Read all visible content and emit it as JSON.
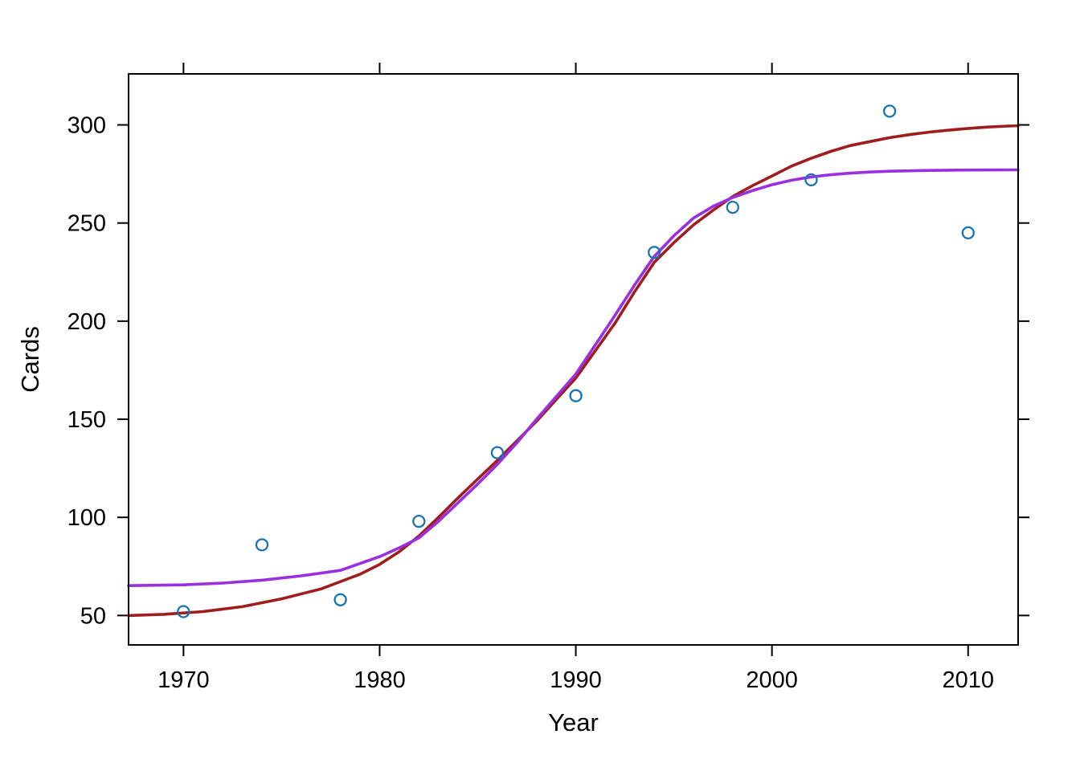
{
  "figure": {
    "background_color": "#ffffff",
    "border_color": "#000000"
  },
  "chart_data": {
    "type": "scatter",
    "title": "",
    "xlabel": "Year",
    "ylabel": "Cards",
    "xlim": [
      1967.2,
      2012.55
    ],
    "ylim": [
      35,
      326
    ],
    "x_ticks": [
      1970,
      1980,
      1990,
      2000,
      2010
    ],
    "y_ticks": [
      50,
      100,
      150,
      200,
      250,
      300
    ],
    "grid": "off",
    "legend": "none",
    "tick_style": "outward ticks on all four sides",
    "points": {
      "name": "observed-cards",
      "marker": "open-circle",
      "color": "#1874B0",
      "x": [
        1970,
        1974,
        1978,
        1982,
        1986,
        1990,
        1994,
        1998,
        2002,
        2006,
        2010
      ],
      "y": [
        52,
        86,
        58,
        98,
        133,
        162,
        235,
        258,
        272,
        307,
        245
      ]
    },
    "series": [
      {
        "name": "sigmoid-fit-red",
        "color": "#9F1D1D",
        "lower_asymptote": 50,
        "upper_asymptote": 300,
        "points": [
          [
            1967.2,
            50
          ],
          [
            1969,
            50.6
          ],
          [
            1971,
            52
          ],
          [
            1973,
            54.5
          ],
          [
            1975,
            58.5
          ],
          [
            1977,
            63.5
          ],
          [
            1979,
            71
          ],
          [
            1980,
            76
          ],
          [
            1981,
            82.5
          ],
          [
            1982,
            90.5
          ],
          [
            1983,
            100
          ],
          [
            1984,
            110
          ],
          [
            1985,
            119.5
          ],
          [
            1986,
            129
          ],
          [
            1987,
            139
          ],
          [
            1988,
            149
          ],
          [
            1989,
            160
          ],
          [
            1990,
            171
          ],
          [
            1991,
            185
          ],
          [
            1992,
            199
          ],
          [
            1993,
            215
          ],
          [
            1994,
            230
          ],
          [
            1995,
            240
          ],
          [
            1996,
            249
          ],
          [
            1997,
            256.5
          ],
          [
            1998,
            263.5
          ],
          [
            1999,
            269
          ],
          [
            2000,
            274
          ],
          [
            2001,
            279
          ],
          [
            2002,
            283
          ],
          [
            2003,
            286.5
          ],
          [
            2004,
            289.5
          ],
          [
            2005,
            291.5
          ],
          [
            2006,
            293.5
          ],
          [
            2007,
            295
          ],
          [
            2008,
            296.3
          ],
          [
            2009,
            297.3
          ],
          [
            2010,
            298.2
          ],
          [
            2011,
            298.9
          ],
          [
            2012,
            299.4
          ],
          [
            2012.55,
            299.6
          ]
        ]
      },
      {
        "name": "sigmoid-fit-purple",
        "color": "#9A2FE0",
        "lower_asymptote": 65,
        "upper_asymptote": 277,
        "points": [
          [
            1967.2,
            65.2
          ],
          [
            1970,
            65.6
          ],
          [
            1972,
            66.5
          ],
          [
            1974,
            68
          ],
          [
            1976,
            70.2
          ],
          [
            1978,
            73
          ],
          [
            1980,
            80
          ],
          [
            1981,
            84.5
          ],
          [
            1982,
            89.5
          ],
          [
            1983,
            98
          ],
          [
            1984,
            107.5
          ],
          [
            1985,
            117
          ],
          [
            1986,
            127
          ],
          [
            1987,
            138
          ],
          [
            1988,
            150
          ],
          [
            1989,
            161.5
          ],
          [
            1990,
            173
          ],
          [
            1991,
            188
          ],
          [
            1992,
            203
          ],
          [
            1993,
            218.5
          ],
          [
            1994,
            233
          ],
          [
            1995,
            243.5
          ],
          [
            1996,
            252.5
          ],
          [
            1997,
            258.5
          ],
          [
            1998,
            263
          ],
          [
            1999,
            266.5
          ],
          [
            2000,
            269.5
          ],
          [
            2001,
            271.8
          ],
          [
            2002,
            273.5
          ],
          [
            2003,
            274.6
          ],
          [
            2004,
            275.4
          ],
          [
            2005,
            276
          ],
          [
            2006,
            276.4
          ],
          [
            2008,
            276.8
          ],
          [
            2010,
            277
          ],
          [
            2012.55,
            277.1
          ]
        ]
      }
    ]
  }
}
